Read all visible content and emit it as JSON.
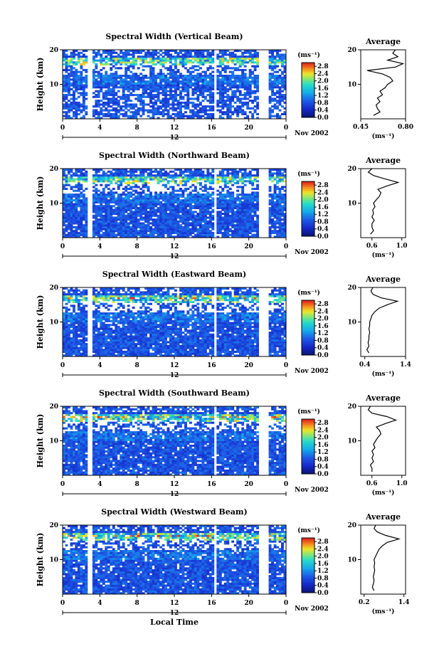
{
  "chart_data": {
    "type": "heatmap",
    "panels": [
      {
        "title": "Spectral Width (Vertical Beam)",
        "avg_xticks": [
          "0.45",
          "0.80"
        ],
        "avg_xlim": [
          0.45,
          0.8
        ],
        "profile": [
          [
            1,
            0.55
          ],
          [
            2,
            0.6
          ],
          [
            3,
            0.58
          ],
          [
            4,
            0.57
          ],
          [
            5,
            0.6
          ],
          [
            6,
            0.58
          ],
          [
            7,
            0.62
          ],
          [
            8,
            0.6
          ],
          [
            9,
            0.64
          ],
          [
            10,
            0.66
          ],
          [
            11,
            0.7
          ],
          [
            12,
            0.68
          ],
          [
            13,
            0.62
          ],
          [
            14,
            0.5
          ],
          [
            15,
            0.72
          ],
          [
            16,
            0.78
          ],
          [
            17,
            0.66
          ],
          [
            18,
            0.74
          ],
          [
            19,
            0.7
          ],
          [
            20,
            0.72
          ]
        ]
      },
      {
        "title": "Spectral Width (Northward Beam)",
        "avg_xticks": [
          "0.6",
          "1.0"
        ],
        "avg_xlim": [
          0.45,
          1.05
        ],
        "profile": [
          [
            1,
            0.58
          ],
          [
            2,
            0.62
          ],
          [
            3,
            0.6
          ],
          [
            4,
            0.6
          ],
          [
            5,
            0.63
          ],
          [
            6,
            0.6
          ],
          [
            7,
            0.62
          ],
          [
            8,
            0.61
          ],
          [
            9,
            0.64
          ],
          [
            10,
            0.62
          ],
          [
            11,
            0.66
          ],
          [
            12,
            0.7
          ],
          [
            13,
            0.72
          ],
          [
            14,
            0.68
          ],
          [
            15,
            0.8
          ],
          [
            16,
            0.95
          ],
          [
            17,
            0.78
          ],
          [
            18,
            0.62
          ],
          [
            19,
            0.55
          ],
          [
            20,
            0.6
          ]
        ]
      },
      {
        "title": "Spectral Width (Eastward Beam)",
        "avg_xticks": [
          "0.4",
          "1.4"
        ],
        "avg_xlim": [
          0.3,
          1.4
        ],
        "profile": [
          [
            1,
            0.5
          ],
          [
            2,
            0.45
          ],
          [
            3,
            0.5
          ],
          [
            4,
            0.48
          ],
          [
            5,
            0.5
          ],
          [
            6,
            0.5
          ],
          [
            7,
            0.52
          ],
          [
            8,
            0.5
          ],
          [
            9,
            0.52
          ],
          [
            10,
            0.52
          ],
          [
            11,
            0.55
          ],
          [
            12,
            0.58
          ],
          [
            13,
            0.65
          ],
          [
            14,
            0.75
          ],
          [
            15,
            0.95
          ],
          [
            16,
            1.2
          ],
          [
            17,
            0.8
          ],
          [
            18,
            0.6
          ],
          [
            19,
            0.55
          ],
          [
            20,
            0.6
          ]
        ]
      },
      {
        "title": "Spectral Width (Southward Beam)",
        "avg_xticks": [
          "0.6",
          "1.0"
        ],
        "avg_xlim": [
          0.45,
          1.05
        ],
        "profile": [
          [
            1,
            0.6
          ],
          [
            2,
            0.6
          ],
          [
            3,
            0.58
          ],
          [
            4,
            0.62
          ],
          [
            5,
            0.6
          ],
          [
            6,
            0.62
          ],
          [
            7,
            0.6
          ],
          [
            8,
            0.64
          ],
          [
            9,
            0.62
          ],
          [
            10,
            0.65
          ],
          [
            11,
            0.68
          ],
          [
            12,
            0.72
          ],
          [
            13,
            0.7
          ],
          [
            14,
            0.66
          ],
          [
            15,
            0.78
          ],
          [
            16,
            0.92
          ],
          [
            17,
            0.8
          ],
          [
            18,
            0.6
          ],
          [
            19,
            0.55
          ],
          [
            20,
            0.58
          ]
        ]
      },
      {
        "title": "Spectral Width (Westward Beam)",
        "avg_xticks": [
          "0.2",
          "1.4"
        ],
        "avg_xlim": [
          0.1,
          1.45
        ],
        "profile": [
          [
            1,
            0.5
          ],
          [
            2,
            0.45
          ],
          [
            3,
            0.48
          ],
          [
            4,
            0.5
          ],
          [
            5,
            0.48
          ],
          [
            6,
            0.5
          ],
          [
            7,
            0.52
          ],
          [
            8,
            0.5
          ],
          [
            9,
            0.52
          ],
          [
            10,
            0.5
          ],
          [
            11,
            0.55
          ],
          [
            12,
            0.6
          ],
          [
            13,
            0.65
          ],
          [
            14,
            0.75
          ],
          [
            15,
            0.9
          ],
          [
            16,
            1.25
          ],
          [
            17,
            0.85
          ],
          [
            18,
            0.6
          ],
          [
            19,
            0.5
          ],
          [
            20,
            0.55
          ]
        ]
      }
    ],
    "ylabel": "Height (km)",
    "ylim": [
      0,
      20
    ],
    "yticks": [
      "10",
      "20"
    ],
    "xlabel": "Local Time",
    "xlim": [
      0,
      24
    ],
    "xticks": [
      "0",
      "4",
      "8",
      "12",
      "16",
      "20",
      "0"
    ],
    "date_label": "12",
    "month_label": "Nov 2002",
    "colorbar_unit": "(ms⁻¹)",
    "colorbar_ticks": [
      "2.8",
      "2.4",
      "2.0",
      "1.6",
      "1.2",
      "0.8",
      "0.4",
      "0.0"
    ],
    "colorbar_range": [
      0,
      3.0
    ],
    "avg_title": "Average",
    "avg_unit": "(ms⁻¹)",
    "avg_yticks": [
      "10",
      "20"
    ],
    "data_gaps_hours": [
      [
        2.6,
        3.2
      ],
      [
        16.2,
        16.6
      ],
      [
        21.2,
        22.0
      ]
    ],
    "colors": {
      "low": "#1f3cd6",
      "mid": "#2aa6e8",
      "high": "#e83020",
      "missing": "#ffffff"
    }
  }
}
